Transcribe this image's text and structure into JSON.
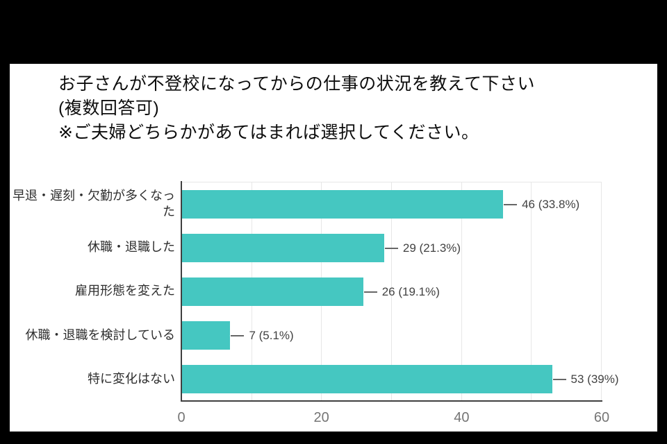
{
  "title": {
    "line1": "お子さんが不登校になってからの仕事の状況を教えて下さい",
    "line2": "(複数回答可)",
    "line3": "※ご夫婦どちらかがあてはまれば選択してください。"
  },
  "chart_data": {
    "type": "bar",
    "orientation": "horizontal",
    "title": "お子さんが不登校になってからの仕事の状況を教えて下さい (複数回答可) ※ご夫婦どちらかがあてはまれば選択してください。",
    "categories": [
      "早退・遅刻・欠勤が多くなった",
      "休職・退職した",
      "雇用形態を変えた",
      "休職・退職を検討している",
      "特に変化はない"
    ],
    "values": [
      46,
      29,
      26,
      7,
      53
    ],
    "value_labels": [
      "46 (33.8%)",
      "29 (21.3%)",
      "26 (19.1%)",
      "7 (5.1%)",
      "53 (39%)"
    ],
    "xlim": [
      0,
      60
    ],
    "x_ticks": [
      0,
      20,
      40,
      60
    ],
    "gridline_interval": 10,
    "grid": true,
    "legend": "none"
  },
  "colors": {
    "frame_background": "#000000",
    "panel_background": "#ffffff",
    "bar_fill": "#45C7C1",
    "axis_line": "#3f3f3f",
    "gridline": "#e7e7e7",
    "tick_label": "#757575",
    "value_label": "#424242",
    "category_label": "#2e2e2e",
    "title_text": "#0d0d0d"
  }
}
